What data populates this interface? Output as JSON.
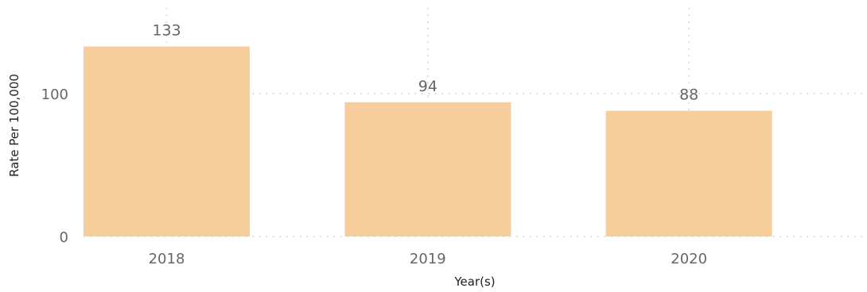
{
  "chart_data": {
    "type": "bar",
    "categories": [
      "2018",
      "2019",
      "2020"
    ],
    "values": [
      133,
      94,
      88
    ],
    "data_labels": [
      "133",
      "94",
      "88"
    ],
    "title": "",
    "xlabel": "Year(s)",
    "ylabel": "Rate Per 100,000",
    "ylim": [
      0,
      160
    ],
    "y_ticks": [
      0,
      100
    ],
    "y_tick_labels": [
      "0",
      "100"
    ],
    "grid": true,
    "grid_style": "dotted",
    "legend": "none",
    "bar_color": "#F8CD9C"
  }
}
